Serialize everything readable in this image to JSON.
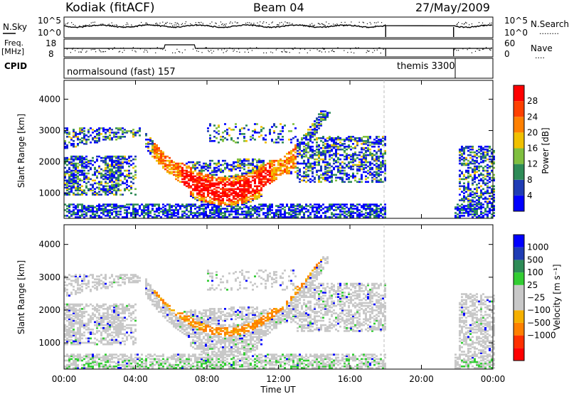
{
  "header": {
    "station": "Kodiak (fitACF)",
    "beam": "Beam 04",
    "date": "27/May/2009"
  },
  "panels": {
    "nsky": {
      "label": "N.Sky",
      "ticks_left": [
        "10^5",
        "10^0"
      ],
      "ticks_right": [
        "10^5",
        "10^0"
      ],
      "right_label": "N.Search",
      "right_legend": "........"
    },
    "freq": {
      "label_line1": "Freq.",
      "label_line2": "[MHz]",
      "ticks_left": [
        "18",
        "8"
      ],
      "ticks_right": [
        "60",
        "0"
      ],
      "right_label": "Nave",
      "right_legend": "...."
    },
    "cpid": {
      "label": "CPID",
      "program_1": "normalsound (fast) 157",
      "program_2": "themis 3300"
    }
  },
  "colors": {
    "power": [
      "#0000ff",
      "#1f3cb4",
      "#2e8b57",
      "#7fbf3f",
      "#f0c000",
      "#ff8000",
      "#ff4000",
      "#ff0000"
    ],
    "velocity": [
      "#ff0000",
      "#ff3000",
      "#ff8000",
      "#f5b000",
      "#c8c8c8",
      "#c8c8c8",
      "#32cd32",
      "#2e8b57",
      "#1f3cb4",
      "#0000ff"
    ]
  },
  "chart_data": [
    {
      "type": "heatmap",
      "name": "power",
      "ylabel": "Slant Range [km]",
      "y_ticks": [
        "1000",
        "2000",
        "3000",
        "4000"
      ],
      "ylim": [
        200,
        4600
      ],
      "colorbar_label": "Power [dB]",
      "colorbar_ticks": [
        "4",
        "8",
        "12",
        "16",
        "20",
        "24",
        "28"
      ],
      "data_gap_ut": [
        18.0,
        21.8
      ]
    },
    {
      "type": "heatmap",
      "name": "velocity",
      "ylabel": "Slant Range [km]",
      "y_ticks": [
        "1000",
        "2000",
        "3000",
        "4000"
      ],
      "ylim": [
        200,
        4600
      ],
      "colorbar_label": "Velocity [m s⁻¹]",
      "colorbar_ticks": [
        "1000",
        "500",
        "100",
        "25",
        "−25",
        "−100",
        "−500",
        "−1000"
      ],
      "data_gap_ut": [
        18.0,
        21.8
      ]
    }
  ],
  "xaxis": {
    "label": "Time UT",
    "ticks": [
      "00:00",
      "04:00",
      "08:00",
      "12:00",
      "16:00",
      "20:00",
      "00:00"
    ],
    "xlim": [
      0,
      24
    ]
  }
}
